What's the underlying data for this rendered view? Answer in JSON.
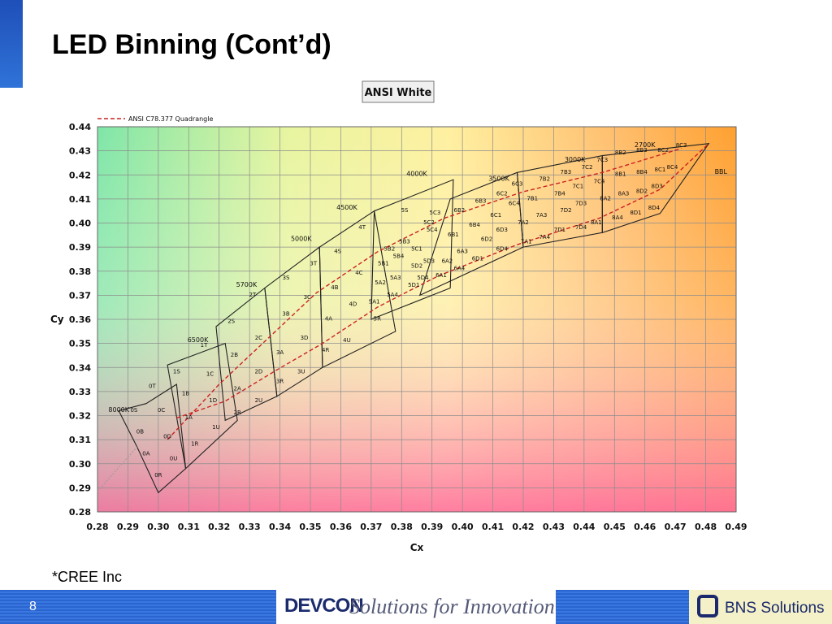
{
  "slide": {
    "title": "LED Binning (Cont’d)",
    "source_note": "*CREE Inc",
    "page_number": "8"
  },
  "footer": {
    "brand": "DEVCON",
    "tagline": "Solutions for Innovation",
    "partner": "BNS Solutions"
  },
  "chart_data": {
    "type": "diagram-chart",
    "title": "ANSI White",
    "legend": "ANSI C78.377 Quadrangle",
    "xlabel": "Cx",
    "ylabel": "Cy",
    "xlim": [
      0.28,
      0.49
    ],
    "ylim": [
      0.28,
      0.44
    ],
    "xticks": [
      "0.28",
      "0.29",
      "0.30",
      "0.31",
      "0.32",
      "0.33",
      "0.34",
      "0.35",
      "0.36",
      "0.37",
      "0.38",
      "0.39",
      "0.40",
      "0.41",
      "0.42",
      "0.43",
      "0.44",
      "0.45",
      "0.46",
      "0.47",
      "0.48",
      "0.49"
    ],
    "yticks": [
      "0.28",
      "0.29",
      "0.30",
      "0.31",
      "0.32",
      "0.33",
      "0.34",
      "0.35",
      "0.36",
      "0.37",
      "0.38",
      "0.39",
      "0.40",
      "0.41",
      "0.42",
      "0.43",
      "0.44"
    ],
    "cct_labels": [
      {
        "text": "8000K",
        "x": 0.287,
        "y": 0.3215
      },
      {
        "text": "6500K",
        "x": 0.313,
        "y": 0.3505
      },
      {
        "text": "5700K",
        "x": 0.329,
        "y": 0.3735
      },
      {
        "text": "5000K",
        "x": 0.347,
        "y": 0.3925
      },
      {
        "text": "4500K",
        "x": 0.362,
        "y": 0.4055
      },
      {
        "text": "4000K",
        "x": 0.385,
        "y": 0.4195
      },
      {
        "text": "3500K",
        "x": 0.412,
        "y": 0.4175
      },
      {
        "text": "3000K",
        "x": 0.437,
        "y": 0.4255
      },
      {
        "text": "2700K",
        "x": 0.46,
        "y": 0.4315
      },
      {
        "text": "BBL",
        "x": 0.485,
        "y": 0.4205
      }
    ],
    "cells": [
      {
        "label": "0R",
        "x": 0.3,
        "y": 0.2945
      },
      {
        "label": "0A",
        "x": 0.296,
        "y": 0.3035
      },
      {
        "label": "0U",
        "x": 0.305,
        "y": 0.3015
      },
      {
        "label": "0B",
        "x": 0.294,
        "y": 0.3125
      },
      {
        "label": "0D",
        "x": 0.303,
        "y": 0.3105
      },
      {
        "label": "0S",
        "x": 0.292,
        "y": 0.3215
      },
      {
        "label": "0C",
        "x": 0.301,
        "y": 0.3215
      },
      {
        "label": "0T",
        "x": 0.298,
        "y": 0.3315
      },
      {
        "label": "1R",
        "x": 0.312,
        "y": 0.3075
      },
      {
        "label": "1U",
        "x": 0.319,
        "y": 0.3145
      },
      {
        "label": "1A",
        "x": 0.31,
        "y": 0.3185
      },
      {
        "label": "1D",
        "x": 0.318,
        "y": 0.3255
      },
      {
        "label": "1B",
        "x": 0.309,
        "y": 0.3285
      },
      {
        "label": "1C",
        "x": 0.317,
        "y": 0.3365
      },
      {
        "label": "1S",
        "x": 0.306,
        "y": 0.3375
      },
      {
        "label": "1T",
        "x": 0.315,
        "y": 0.3485
      },
      {
        "label": "2R",
        "x": 0.326,
        "y": 0.3205
      },
      {
        "label": "2U",
        "x": 0.333,
        "y": 0.3255
      },
      {
        "label": "2A",
        "x": 0.326,
        "y": 0.3305
      },
      {
        "label": "2D",
        "x": 0.333,
        "y": 0.3375
      },
      {
        "label": "2B",
        "x": 0.325,
        "y": 0.3445
      },
      {
        "label": "2C",
        "x": 0.333,
        "y": 0.3515
      },
      {
        "label": "2S",
        "x": 0.324,
        "y": 0.3585
      },
      {
        "label": "2T",
        "x": 0.331,
        "y": 0.3695
      },
      {
        "label": "3R",
        "x": 0.34,
        "y": 0.3335
      },
      {
        "label": "3U",
        "x": 0.347,
        "y": 0.3375
      },
      {
        "label": "3A",
        "x": 0.34,
        "y": 0.3455
      },
      {
        "label": "3D",
        "x": 0.348,
        "y": 0.3515
      },
      {
        "label": "3B",
        "x": 0.342,
        "y": 0.3615
      },
      {
        "label": "3C",
        "x": 0.349,
        "y": 0.3685
      },
      {
        "label": "3S",
        "x": 0.342,
        "y": 0.3765
      },
      {
        "label": "3T",
        "x": 0.351,
        "y": 0.3825
      },
      {
        "label": "4R",
        "x": 0.355,
        "y": 0.3465
      },
      {
        "label": "4U",
        "x": 0.362,
        "y": 0.3505
      },
      {
        "label": "4A",
        "x": 0.356,
        "y": 0.3595
      },
      {
        "label": "4D",
        "x": 0.364,
        "y": 0.3655
      },
      {
        "label": "4B",
        "x": 0.358,
        "y": 0.3725
      },
      {
        "label": "4C",
        "x": 0.366,
        "y": 0.3785
      },
      {
        "label": "4S",
        "x": 0.359,
        "y": 0.3875
      },
      {
        "label": "4T",
        "x": 0.367,
        "y": 0.3975
      },
      {
        "label": "5R",
        "x": 0.372,
        "y": 0.3595
      },
      {
        "label": "5A1",
        "x": 0.371,
        "y": 0.3665
      },
      {
        "label": "5A2",
        "x": 0.373,
        "y": 0.3745
      },
      {
        "label": "5A3",
        "x": 0.378,
        "y": 0.3765
      },
      {
        "label": "5A4",
        "x": 0.377,
        "y": 0.3695
      },
      {
        "label": "5B1",
        "x": 0.374,
        "y": 0.3825
      },
      {
        "label": "5B2",
        "x": 0.376,
        "y": 0.3885
      },
      {
        "label": "5B3",
        "x": 0.381,
        "y": 0.3915
      },
      {
        "label": "5B4",
        "x": 0.379,
        "y": 0.3855
      },
      {
        "label": "5C1",
        "x": 0.385,
        "y": 0.3885
      },
      {
        "label": "5C2",
        "x": 0.389,
        "y": 0.3995
      },
      {
        "label": "5C3",
        "x": 0.391,
        "y": 0.4035
      },
      {
        "label": "5C4",
        "x": 0.39,
        "y": 0.3965
      },
      {
        "label": "5D1",
        "x": 0.384,
        "y": 0.3735
      },
      {
        "label": "5D2",
        "x": 0.385,
        "y": 0.3815
      },
      {
        "label": "5D3",
        "x": 0.389,
        "y": 0.3835
      },
      {
        "label": "5D4",
        "x": 0.387,
        "y": 0.3765
      },
      {
        "label": "5S",
        "x": 0.381,
        "y": 0.4045
      },
      {
        "label": "6A1",
        "x": 0.393,
        "y": 0.3775
      },
      {
        "label": "6A2",
        "x": 0.395,
        "y": 0.3835
      },
      {
        "label": "6A3",
        "x": 0.4,
        "y": 0.3875
      },
      {
        "label": "6A4",
        "x": 0.399,
        "y": 0.3805
      },
      {
        "label": "6B1",
        "x": 0.397,
        "y": 0.3945
      },
      {
        "label": "6B2",
        "x": 0.399,
        "y": 0.4045
      },
      {
        "label": "6B3",
        "x": 0.406,
        "y": 0.4085
      },
      {
        "label": "6B4",
        "x": 0.404,
        "y": 0.3985
      },
      {
        "label": "6C1",
        "x": 0.411,
        "y": 0.4025
      },
      {
        "label": "6C2",
        "x": 0.413,
        "y": 0.4115
      },
      {
        "label": "6C3",
        "x": 0.418,
        "y": 0.4155
      },
      {
        "label": "6C4",
        "x": 0.417,
        "y": 0.4075
      },
      {
        "label": "6D1",
        "x": 0.405,
        "y": 0.3845
      },
      {
        "label": "6D2",
        "x": 0.408,
        "y": 0.3925
      },
      {
        "label": "6D3",
        "x": 0.413,
        "y": 0.3965
      },
      {
        "label": "6D4",
        "x": 0.413,
        "y": 0.3885
      },
      {
        "label": "7A1",
        "x": 0.421,
        "y": 0.3915
      },
      {
        "label": "7A2",
        "x": 0.42,
        "y": 0.3995
      },
      {
        "label": "7A3",
        "x": 0.426,
        "y": 0.4025
      },
      {
        "label": "7A4",
        "x": 0.427,
        "y": 0.3935
      },
      {
        "label": "7B1",
        "x": 0.423,
        "y": 0.4095
      },
      {
        "label": "7B2",
        "x": 0.427,
        "y": 0.4175
      },
      {
        "label": "7B3",
        "x": 0.434,
        "y": 0.4205
      },
      {
        "label": "7B4",
        "x": 0.432,
        "y": 0.4115
      },
      {
        "label": "7C1",
        "x": 0.438,
        "y": 0.4145
      },
      {
        "label": "7C2",
        "x": 0.441,
        "y": 0.4225
      },
      {
        "label": "7C3",
        "x": 0.446,
        "y": 0.4255
      },
      {
        "label": "7C4",
        "x": 0.445,
        "y": 0.4165
      },
      {
        "label": "7D1",
        "x": 0.432,
        "y": 0.3965
      },
      {
        "label": "7D2",
        "x": 0.434,
        "y": 0.4045
      },
      {
        "label": "7D3",
        "x": 0.439,
        "y": 0.4075
      },
      {
        "label": "7D4",
        "x": 0.439,
        "y": 0.3975
      },
      {
        "label": "8A1",
        "x": 0.444,
        "y": 0.3995
      },
      {
        "label": "8A2",
        "x": 0.447,
        "y": 0.4095
      },
      {
        "label": "8A3",
        "x": 0.453,
        "y": 0.4115
      },
      {
        "label": "8A4",
        "x": 0.451,
        "y": 0.4015
      },
      {
        "label": "8B1",
        "x": 0.452,
        "y": 0.4195
      },
      {
        "label": "8B2",
        "x": 0.452,
        "y": 0.4285
      },
      {
        "label": "8B3",
        "x": 0.459,
        "y": 0.4295
      },
      {
        "label": "8B4",
        "x": 0.459,
        "y": 0.4205
      },
      {
        "label": "8C1",
        "x": 0.465,
        "y": 0.4215
      },
      {
        "label": "8C2",
        "x": 0.466,
        "y": 0.4295
      },
      {
        "label": "8C3",
        "x": 0.472,
        "y": 0.4315
      },
      {
        "label": "8C4",
        "x": 0.469,
        "y": 0.4225
      },
      {
        "label": "8D1",
        "x": 0.457,
        "y": 0.4035
      },
      {
        "label": "8D2",
        "x": 0.459,
        "y": 0.4125
      },
      {
        "label": "8D3",
        "x": 0.464,
        "y": 0.4145
      },
      {
        "label": "8D4",
        "x": 0.463,
        "y": 0.4055
      }
    ]
  }
}
